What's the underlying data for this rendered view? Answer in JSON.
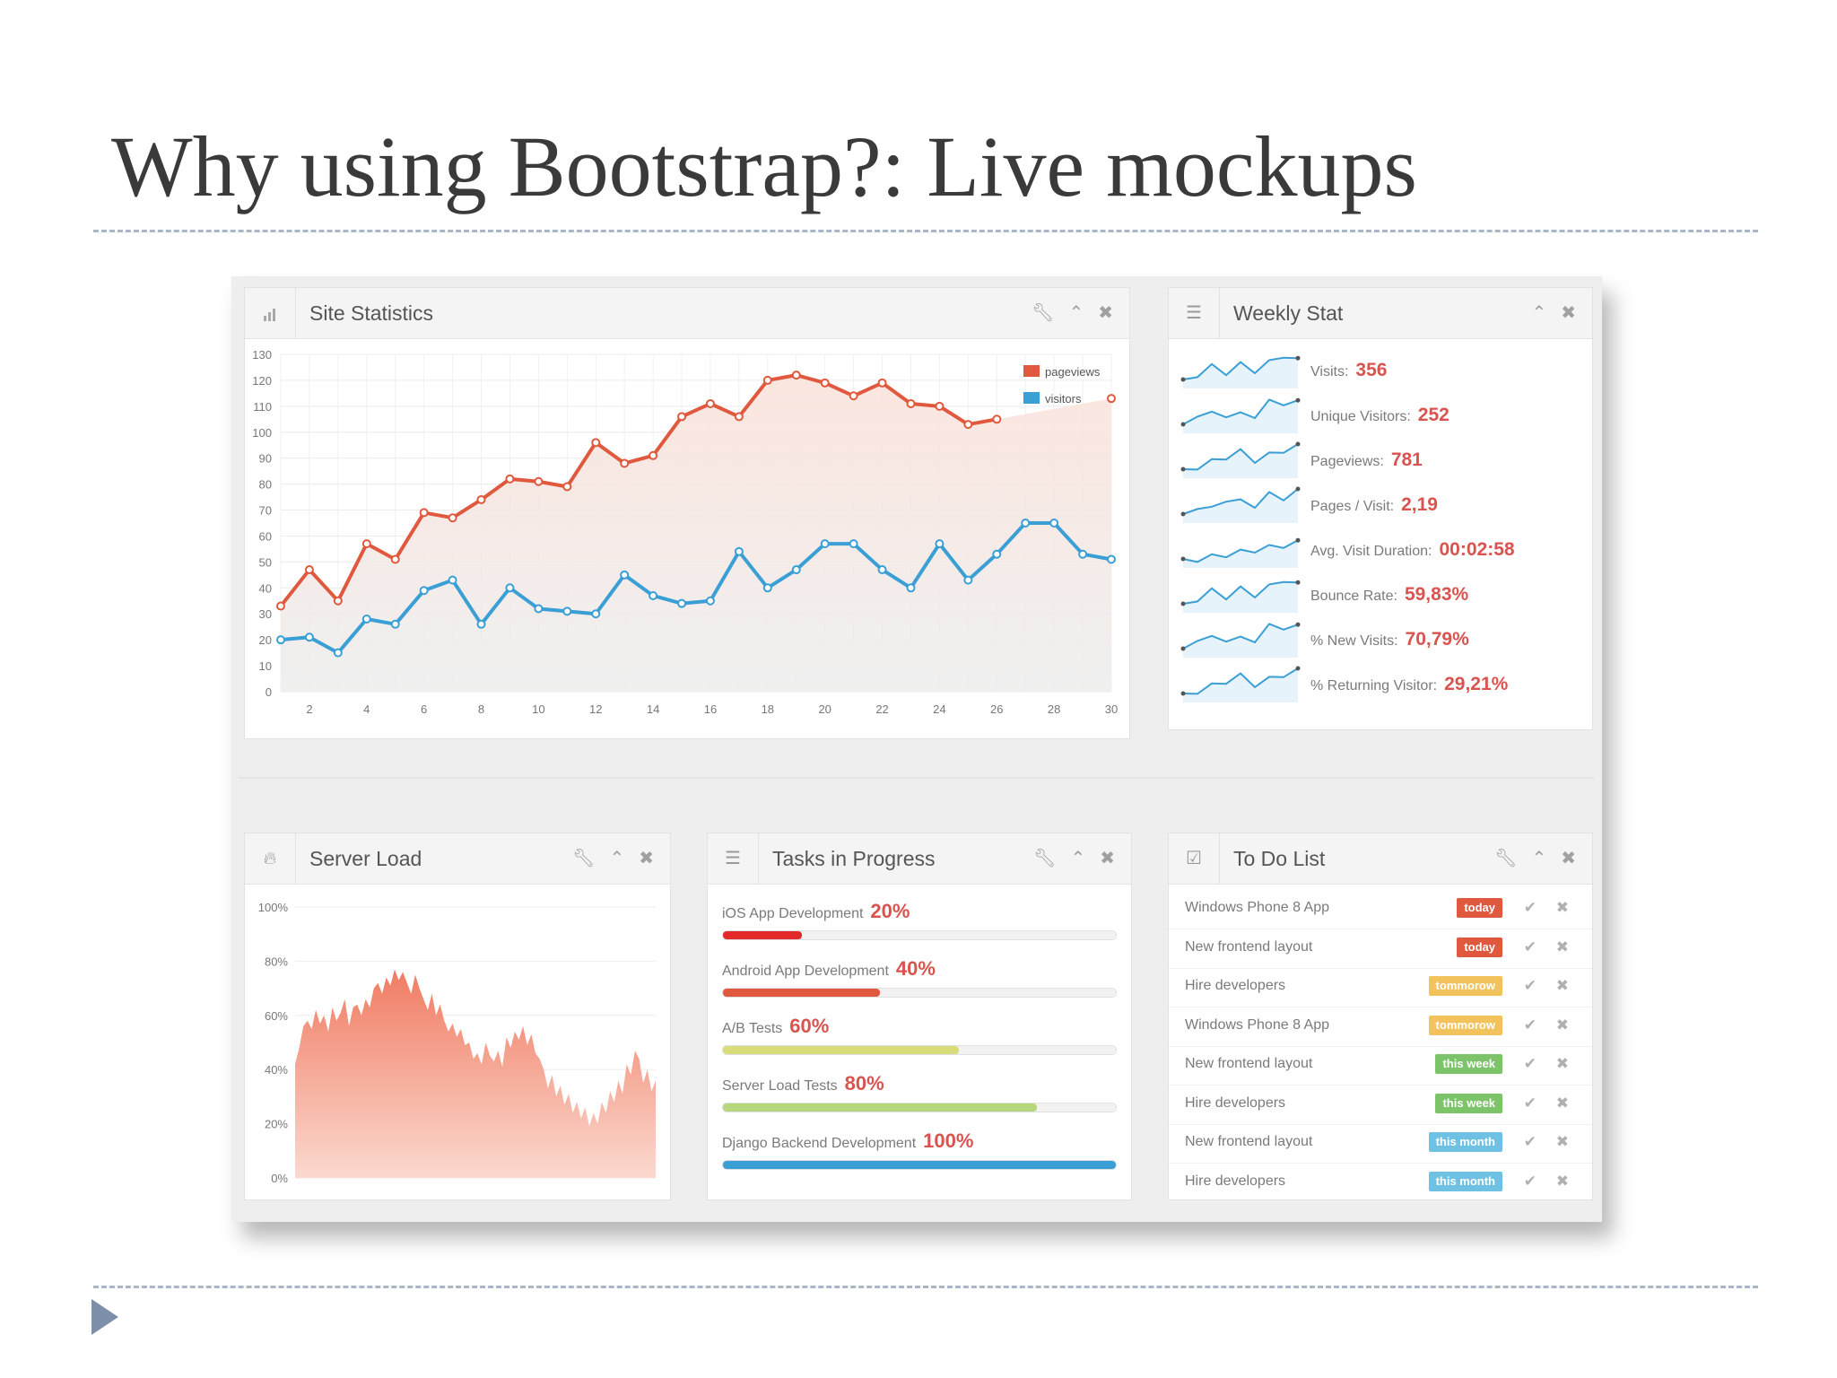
{
  "slide": {
    "title": "Why using Bootstrap?: Live mockups"
  },
  "panels": {
    "site_statistics": {
      "title": "Site Statistics"
    },
    "weekly_stat": {
      "title": "Weekly Stat"
    },
    "server_load": {
      "title": "Server Load"
    },
    "tasks": {
      "title": "Tasks in Progress"
    },
    "todo": {
      "title": "To Do List"
    }
  },
  "icons": {
    "panel_controls": [
      "wrench-icon",
      "chevron-up-icon",
      "close-icon"
    ],
    "site_statistics": "bar-chart-icon",
    "weekly_stat": "list-icon",
    "server_load": "fire-icon",
    "tasks": "list-icon",
    "todo": "checkbox-icon",
    "todo_actions": [
      "check-icon",
      "close-icon"
    ]
  },
  "chart_data": [
    {
      "type": "line",
      "x": [
        1,
        2,
        3,
        4,
        5,
        6,
        7,
        8,
        9,
        10,
        11,
        12,
        13,
        14,
        15,
        16,
        17,
        18,
        19,
        20,
        21,
        22,
        23,
        24,
        25,
        26,
        27,
        28,
        29,
        30
      ],
      "series": [
        {
          "name": "pageviews",
          "color": "#e0583d",
          "values": [
            33,
            47,
            35,
            57,
            51,
            69,
            67,
            74,
            82,
            81,
            79,
            96,
            88,
            91,
            106,
            111,
            106,
            120,
            122,
            119,
            114,
            119,
            111,
            110,
            103,
            105,
            null,
            null,
            null,
            113
          ]
        },
        {
          "name": "visitors",
          "color": "#3a9fd5",
          "values": [
            20,
            21,
            15,
            28,
            26,
            39,
            43,
            26,
            40,
            32,
            31,
            30,
            45,
            37,
            34,
            35,
            54,
            40,
            47,
            57,
            57,
            47,
            40,
            57,
            43,
            53,
            65,
            65,
            53,
            51
          ]
        }
      ],
      "xticks": [
        2,
        4,
        6,
        8,
        10,
        12,
        14,
        16,
        18,
        20,
        22,
        24,
        26,
        28,
        30
      ],
      "yticks": [
        0,
        10,
        20,
        30,
        40,
        50,
        60,
        70,
        80,
        90,
        100,
        110,
        120,
        130
      ],
      "ylim": [
        0,
        130
      ],
      "legend": "top-right",
      "grid": true
    },
    {
      "type": "area",
      "color": "#f07c63",
      "yticks": [
        "100%",
        "80%",
        "60%",
        "40%",
        "20%",
        "0%"
      ],
      "ylim": [
        0,
        100
      ],
      "values": [
        42,
        48,
        56,
        58,
        55,
        62,
        57,
        60,
        54,
        63,
        58,
        61,
        66,
        56,
        63,
        64,
        60,
        66,
        63,
        70,
        72,
        68,
        74,
        71,
        77,
        73,
        76,
        72,
        68,
        75,
        70,
        66,
        62,
        68,
        60,
        64,
        58,
        54,
        57,
        52,
        55,
        49,
        50,
        44,
        46,
        42,
        50,
        45,
        43,
        47,
        41,
        52,
        48,
        54,
        51,
        56,
        49,
        53,
        46,
        44,
        40,
        33,
        38,
        30,
        34,
        27,
        31,
        24,
        28,
        22,
        26,
        19,
        24,
        20,
        28,
        24,
        32,
        28,
        36,
        31,
        42,
        38,
        47,
        44,
        35,
        40,
        32,
        36
      ]
    }
  ],
  "weekly_stats": [
    {
      "label": "Visits:",
      "value": "356"
    },
    {
      "label": "Unique Visitors:",
      "value": "252"
    },
    {
      "label": "Pageviews:",
      "value": "781"
    },
    {
      "label": "Pages / Visit:",
      "value": "2,19"
    },
    {
      "label": "Avg. Visit Duration:",
      "value": "00:02:58"
    },
    {
      "label": "Bounce Rate:",
      "value": "59,83%"
    },
    {
      "label": "% New Visits:",
      "value": "70,79%"
    },
    {
      "label": "% Returning Visitor:",
      "value": "29,21%"
    }
  ],
  "tasks": [
    {
      "label": "iOS App Development",
      "percent_text": "20%",
      "progress": 0.2,
      "color": "#e22a2a"
    },
    {
      "label": "Android App Development",
      "percent_text": "40%",
      "progress": 0.4,
      "color": "#e0583d"
    },
    {
      "label": "A/B Tests",
      "percent_text": "60%",
      "progress": 0.6,
      "color": "#d8dd7a"
    },
    {
      "label": "Server Load Tests",
      "percent_text": "80%",
      "progress": 0.8,
      "color": "#b7d77c"
    },
    {
      "label": "Django Backend Development",
      "percent_text": "100%",
      "progress": 1.0,
      "color": "#3a9fd5"
    }
  ],
  "todos": [
    {
      "text": "Windows Phone 8 App",
      "badge": "today",
      "color": "#e0583d"
    },
    {
      "text": "New frontend layout",
      "badge": "today",
      "color": "#e0583d"
    },
    {
      "text": "Hire developers",
      "badge": "tommorow",
      "color": "#f2c35d"
    },
    {
      "text": "Windows Phone 8 App",
      "badge": "tommorow",
      "color": "#f2c35d"
    },
    {
      "text": "New frontend layout",
      "badge": "this week",
      "color": "#7cc36a"
    },
    {
      "text": "Hire developers",
      "badge": "this week",
      "color": "#7cc36a"
    },
    {
      "text": "New frontend layout",
      "badge": "this month",
      "color": "#6fc1e3"
    },
    {
      "text": "Hire developers",
      "badge": "this month",
      "color": "#6fc1e3"
    }
  ]
}
